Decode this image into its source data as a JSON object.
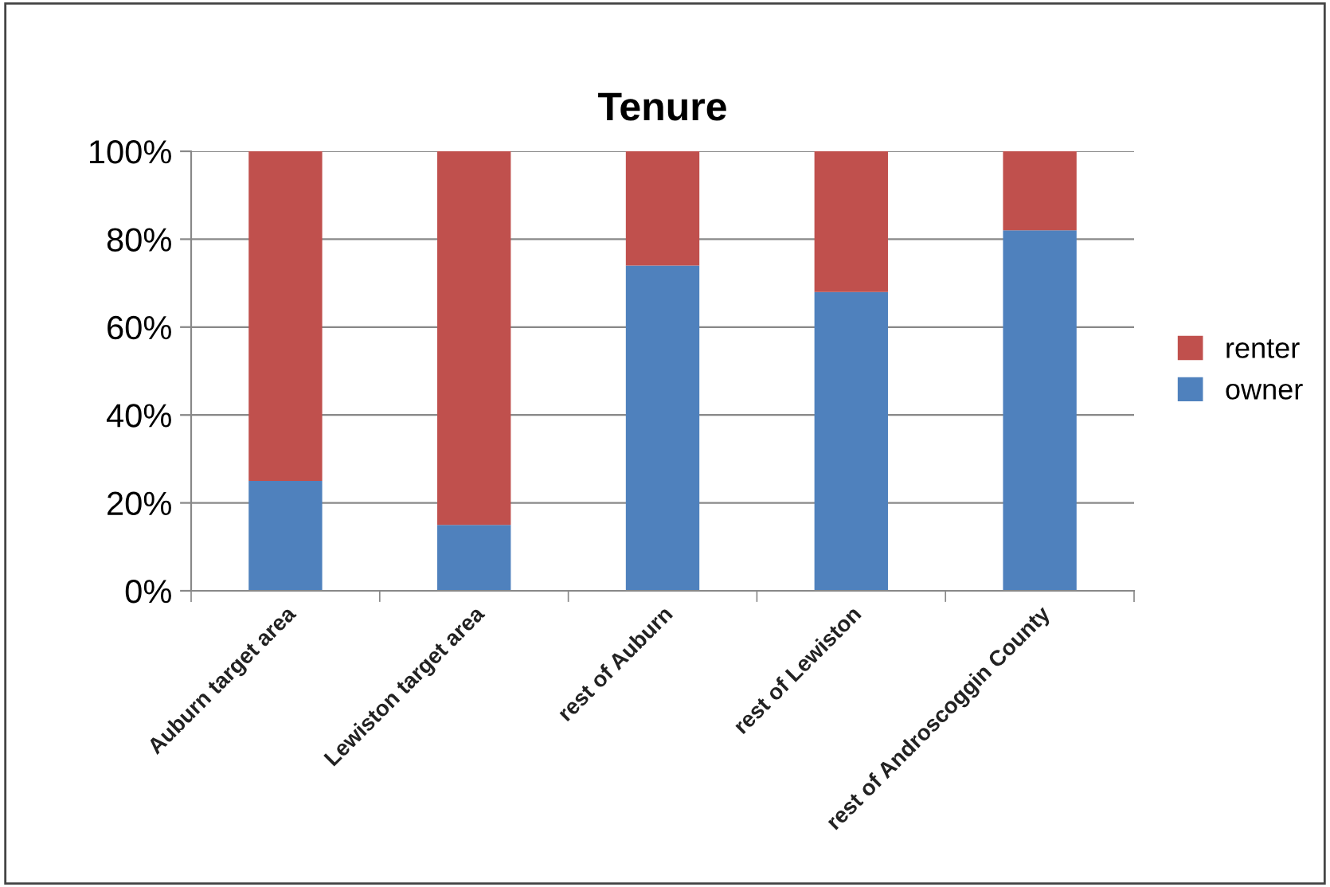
{
  "chart_data": {
    "type": "bar",
    "title": "Tenure",
    "stacked": true,
    "categories": [
      "Auburn target area",
      "Lewiston target area",
      "rest of Auburn",
      "rest of Lewiston",
      "rest of Androscoggin County"
    ],
    "series": [
      {
        "name": "owner",
        "color": "#4f81bd",
        "values": [
          25,
          15,
          74,
          68,
          82
        ]
      },
      {
        "name": "renter",
        "color": "#c0504d",
        "values": [
          75,
          85,
          26,
          32,
          18
        ]
      }
    ],
    "ylim": [
      0,
      100
    ],
    "yticks": [
      {
        "value": 0,
        "label": "0%"
      },
      {
        "value": 20,
        "label": "20%"
      },
      {
        "value": 40,
        "label": "40%"
      },
      {
        "value": 60,
        "label": "60%"
      },
      {
        "value": 80,
        "label": "80%"
      },
      {
        "value": 100,
        "label": "100%"
      }
    ],
    "grid": "y",
    "legend": "right"
  }
}
